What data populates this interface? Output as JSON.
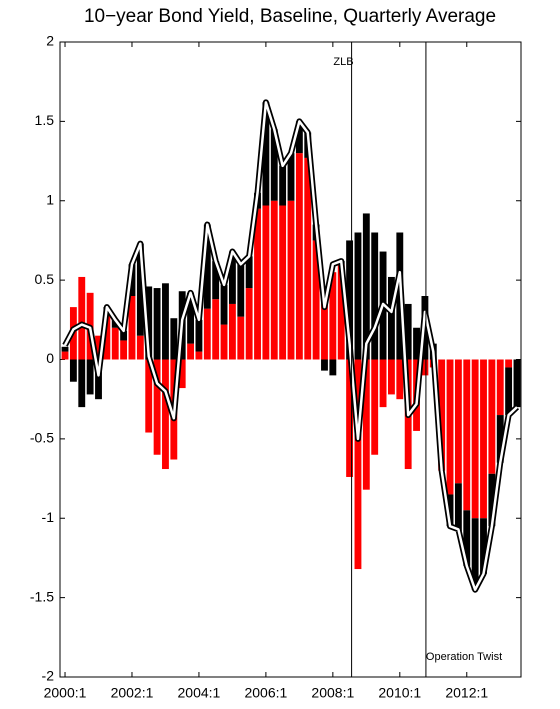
{
  "chart_data": {
    "type": "bar",
    "title": "10−year Bond Yield, Baseline, Quarterly Average",
    "x": [
      2000,
      2000.25,
      2000.5,
      2000.75,
      2001,
      2001.25,
      2001.5,
      2001.75,
      2002,
      2002.25,
      2002.5,
      2002.75,
      2003,
      2003.25,
      2003.5,
      2003.75,
      2004,
      2004.25,
      2004.5,
      2004.75,
      2005,
      2005.25,
      2005.5,
      2005.75,
      2006,
      2006.25,
      2006.5,
      2006.75,
      2007,
      2007.25,
      2007.5,
      2007.75,
      2008,
      2008.25,
      2008.5,
      2008.75,
      2009,
      2009.25,
      2009.5,
      2009.75,
      2010,
      2010.25,
      2010.5,
      2010.75,
      2011,
      2011.25,
      2011.5,
      2011.75,
      2012,
      2012.25,
      2012.5,
      2012.75,
      2013,
      2013.25,
      2013.5
    ],
    "series": [
      {
        "color": "#ff0000",
        "values": [
          0.05,
          0.33,
          0.52,
          0.42,
          0.15,
          0.28,
          0.2,
          0.12,
          0.4,
          0.15,
          -0.46,
          -0.6,
          -0.69,
          -0.63,
          -0.18,
          0.1,
          0.05,
          0.32,
          0.38,
          0.22,
          0.35,
          0.27,
          0.45,
          0.95,
          0.97,
          1.0,
          0.97,
          1.0,
          1.3,
          1.27,
          0.75,
          0.4,
          0.55,
          0.6,
          -0.74,
          -1.32,
          -0.82,
          -0.6,
          -0.3,
          -0.22,
          -0.25,
          -0.69,
          -0.45,
          -0.1,
          -0.05,
          -0.7,
          -0.85,
          -0.78,
          -0.95,
          -1.0,
          -1.0,
          -0.72,
          -0.35,
          -0.05,
          0
        ]
      },
      {
        "color": "#000000",
        "values": [
          0.03,
          -0.14,
          -0.3,
          -0.22,
          -0.25,
          0.05,
          0.05,
          0.06,
          0.2,
          0.58,
          0.46,
          0.45,
          0.48,
          0.26,
          0.43,
          0.32,
          0.2,
          0.53,
          0.24,
          0.25,
          0.33,
          0.33,
          0.2,
          0.1,
          0.65,
          0.45,
          0.25,
          0.3,
          0.2,
          0.16,
          0.1,
          -0.07,
          -0.1,
          0.02,
          0.75,
          0.8,
          0.92,
          0.8,
          0.68,
          0.52,
          0.8,
          0.35,
          0.2,
          0.4,
          0.1,
          0.0,
          -0.2,
          -0.3,
          -0.35,
          -0.45,
          -0.35,
          -0.33,
          -0.3,
          -0.3,
          -0.3
        ]
      },
      {
        "type": "line",
        "color": "#ffffff",
        "outline": "#000000",
        "values": [
          0.09,
          0.19,
          0.22,
          0.2,
          -0.1,
          0.33,
          0.25,
          0.18,
          0.6,
          0.73,
          0.02,
          -0.15,
          -0.2,
          -0.37,
          0.25,
          0.42,
          0.25,
          0.85,
          0.62,
          0.47,
          0.68,
          0.6,
          0.65,
          1.05,
          1.62,
          1.45,
          1.22,
          1.3,
          1.5,
          1.43,
          0.85,
          0.33,
          0.6,
          0.62,
          0.1,
          -0.5,
          0.1,
          0.2,
          0.35,
          0.3,
          0.55,
          -0.35,
          -0.28,
          0.3,
          0.05,
          -0.7,
          -1.05,
          -1.07,
          -1.3,
          -1.45,
          -1.35,
          -1.05,
          -0.65,
          -0.35,
          -0.3
        ]
      }
    ],
    "annotations": [
      {
        "text": "ZLB",
        "x": 2008.56
      },
      {
        "text": "Operation Twist",
        "x": 2010.78
      }
    ],
    "xlim": [
      1999.85,
      2013.62
    ],
    "xticks": [
      {
        "value": 2000,
        "label": "2000:1"
      },
      {
        "value": 2002,
        "label": "2002:1"
      },
      {
        "value": 2004,
        "label": "2004:1"
      },
      {
        "value": 2006,
        "label": "2006:1"
      },
      {
        "value": 2008,
        "label": "2008:1"
      },
      {
        "value": 2010,
        "label": "2010:1"
      },
      {
        "value": 2012,
        "label": "2012:1"
      }
    ],
    "ylim": [
      -2,
      2
    ],
    "yticks": [
      -2,
      -1.5,
      -1,
      -0.5,
      0,
      0.5,
      1,
      1.5,
      2
    ]
  }
}
